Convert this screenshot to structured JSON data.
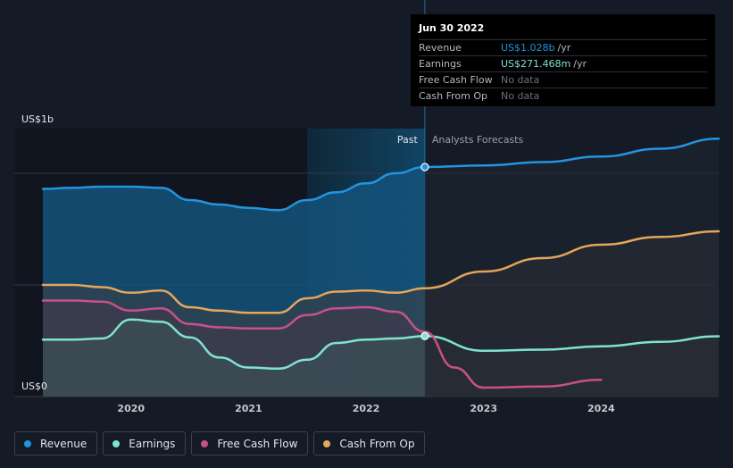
{
  "chart_data": {
    "type": "area",
    "ylabel_top": "US$1b",
    "ylabel_bottom": "US$0",
    "ylim": [
      0,
      1.2
    ],
    "xlim": [
      2019.25,
      2025.0
    ],
    "x_ticks": [
      2020,
      2021,
      2022,
      2023,
      2024
    ],
    "x_tick_labels": [
      "2020",
      "2021",
      "2022",
      "2023",
      "2024"
    ],
    "gridlines": [
      0,
      0.5,
      1.0
    ],
    "past_label": "Past",
    "forecast_label": "Analysts Forecasts",
    "past_end_x": 2022.5,
    "highlight_start_x": 2021.5,
    "series": [
      {
        "name": "Revenue",
        "color": "#2394df",
        "past": [
          [
            2019.25,
            0.93
          ],
          [
            2019.5,
            0.935
          ],
          [
            2019.75,
            0.94
          ],
          [
            2020.0,
            0.94
          ],
          [
            2020.25,
            0.935
          ],
          [
            2020.5,
            0.88
          ],
          [
            2020.75,
            0.86
          ],
          [
            2021.0,
            0.845
          ],
          [
            2021.25,
            0.835
          ],
          [
            2021.5,
            0.88
          ],
          [
            2021.75,
            0.915
          ],
          [
            2022.0,
            0.955
          ],
          [
            2022.25,
            1.0
          ],
          [
            2022.5,
            1.028
          ]
        ],
        "forecast": [
          [
            2022.5,
            1.028
          ],
          [
            2023.0,
            1.035
          ],
          [
            2023.5,
            1.05
          ],
          [
            2024.0,
            1.075
          ],
          [
            2024.5,
            1.11
          ],
          [
            2025.0,
            1.155
          ]
        ]
      },
      {
        "name": "Earnings",
        "color": "#7fe3d1",
        "past": [
          [
            2019.25,
            0.255
          ],
          [
            2019.5,
            0.255
          ],
          [
            2019.75,
            0.26
          ],
          [
            2020.0,
            0.345
          ],
          [
            2020.25,
            0.335
          ],
          [
            2020.5,
            0.265
          ],
          [
            2020.75,
            0.175
          ],
          [
            2021.0,
            0.13
          ],
          [
            2021.25,
            0.125
          ],
          [
            2021.5,
            0.165
          ],
          [
            2021.75,
            0.24
          ],
          [
            2022.0,
            0.255
          ],
          [
            2022.25,
            0.26
          ],
          [
            2022.5,
            0.271
          ]
        ],
        "forecast": [
          [
            2022.5,
            0.271
          ],
          [
            2023.0,
            0.205
          ],
          [
            2023.5,
            0.21
          ],
          [
            2024.0,
            0.225
          ],
          [
            2024.5,
            0.245
          ],
          [
            2025.0,
            0.27
          ]
        ]
      },
      {
        "name": "Free Cash Flow",
        "color": "#c9508b",
        "past": [
          [
            2019.25,
            0.43
          ],
          [
            2019.5,
            0.43
          ],
          [
            2019.75,
            0.425
          ],
          [
            2020.0,
            0.385
          ],
          [
            2020.25,
            0.395
          ],
          [
            2020.5,
            0.325
          ],
          [
            2020.75,
            0.31
          ],
          [
            2021.0,
            0.305
          ],
          [
            2021.25,
            0.305
          ],
          [
            2021.5,
            0.365
          ],
          [
            2021.75,
            0.395
          ],
          [
            2022.0,
            0.4
          ],
          [
            2022.25,
            0.38
          ],
          [
            2022.5,
            0.29
          ]
        ],
        "forecast": [
          [
            2022.5,
            0.29
          ],
          [
            2022.75,
            0.13
          ],
          [
            2023.0,
            0.04
          ],
          [
            2023.5,
            0.045
          ],
          [
            2024.0,
            0.075
          ]
        ]
      },
      {
        "name": "Cash From Op",
        "color": "#e4a65a",
        "past": [
          [
            2019.25,
            0.5
          ],
          [
            2019.5,
            0.5
          ],
          [
            2019.75,
            0.49
          ],
          [
            2020.0,
            0.465
          ],
          [
            2020.25,
            0.475
          ],
          [
            2020.5,
            0.4
          ],
          [
            2020.75,
            0.385
          ],
          [
            2021.0,
            0.375
          ],
          [
            2021.25,
            0.375
          ],
          [
            2021.5,
            0.44
          ],
          [
            2021.75,
            0.47
          ],
          [
            2022.0,
            0.475
          ],
          [
            2022.25,
            0.465
          ],
          [
            2022.5,
            0.485
          ]
        ],
        "forecast": [
          [
            2022.5,
            0.485
          ],
          [
            2023.0,
            0.56
          ],
          [
            2023.5,
            0.62
          ],
          [
            2024.0,
            0.68
          ],
          [
            2024.5,
            0.715
          ],
          [
            2025.0,
            0.74
          ]
        ]
      }
    ]
  },
  "tooltip": {
    "date": "Jun 30 2022",
    "rows": [
      {
        "label": "Revenue",
        "value": "US$1.028b",
        "unit": "/yr"
      },
      {
        "label": "Earnings",
        "value": "US$271.468m",
        "unit": "/yr"
      },
      {
        "label": "Free Cash Flow",
        "value": "No data",
        "unit": ""
      },
      {
        "label": "Cash From Op",
        "value": "No data",
        "unit": ""
      }
    ]
  },
  "legend": [
    {
      "label": "Revenue",
      "color": "#2394df"
    },
    {
      "label": "Earnings",
      "color": "#7fe3d1"
    },
    {
      "label": "Free Cash Flow",
      "color": "#c9508b"
    },
    {
      "label": "Cash From Op",
      "color": "#e4a65a"
    }
  ]
}
